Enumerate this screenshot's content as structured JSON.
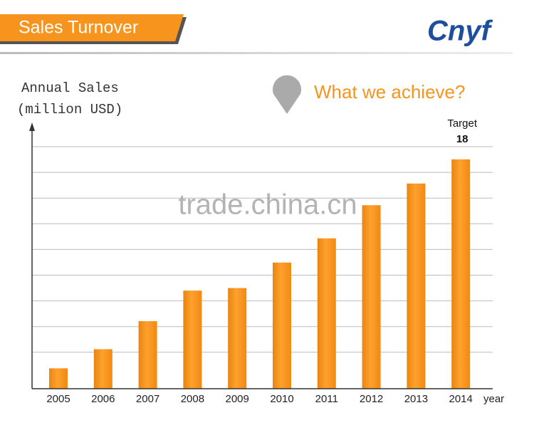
{
  "header": {
    "title": "Sales Turnover",
    "logo": "Cnyf",
    "watermark": "trade.china.cn"
  },
  "chart_data": {
    "type": "bar",
    "title": "What we achieve?",
    "y_label": [
      "Annual Sales",
      "(million USD)"
    ],
    "x_label": "year",
    "categories": [
      "2005",
      "2006",
      "2007",
      "2008",
      "2009",
      "2010",
      "2011",
      "2012",
      "2013",
      "2014"
    ],
    "values": [
      1.6,
      3.1,
      5.3,
      7.7,
      7.9,
      9.9,
      11.8,
      14.4,
      16.1,
      18
    ],
    "color": "#f7941e",
    "ylim": [
      0,
      20
    ],
    "grid": true,
    "annotation": "Target"
  }
}
